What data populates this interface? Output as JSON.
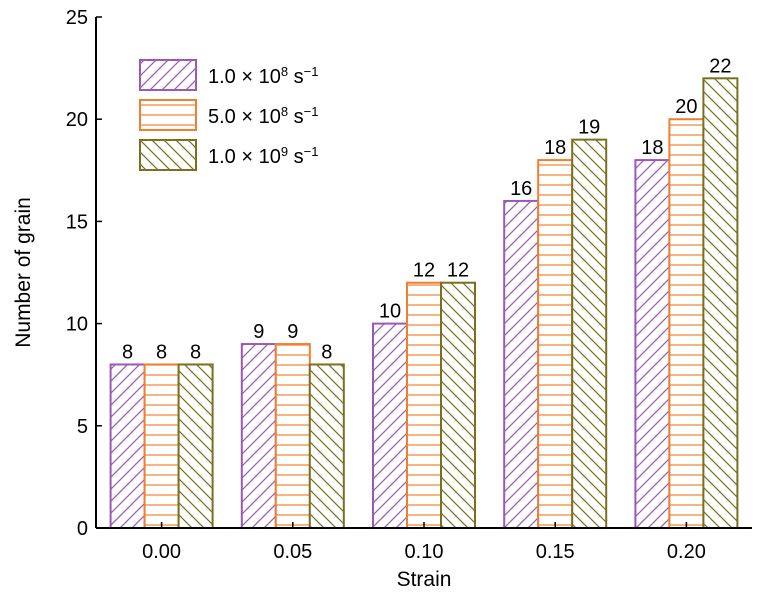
{
  "chart_data": {
    "type": "bar",
    "categories": [
      "0.00",
      "0.05",
      "0.10",
      "0.15",
      "0.20"
    ],
    "series": [
      {
        "name_base": "1.0 × 10",
        "name_exp": "8",
        "name_unit": " s",
        "name_unit_exp": "−1",
        "values": [
          8,
          9,
          10,
          16,
          18
        ],
        "color": "#9b59b6",
        "pattern": "diagonal-up"
      },
      {
        "name_base": "5.0 × 10",
        "name_exp": "8",
        "name_unit": " s",
        "name_unit_exp": "−1",
        "values": [
          8,
          9,
          12,
          18,
          20
        ],
        "color": "#f08030",
        "pattern": "horizontal"
      },
      {
        "name_base": "1.0 × 10",
        "name_exp": "9",
        "name_unit": " s",
        "name_unit_exp": "−1",
        "values": [
          8,
          8,
          12,
          19,
          22
        ],
        "color": "#7a7020",
        "pattern": "diagonal-down"
      }
    ],
    "xlabel": "Strain",
    "ylabel": "Number of grain",
    "ylim": [
      0,
      25
    ],
    "yticks": [
      "0",
      "5",
      "10",
      "15",
      "20",
      "25"
    ],
    "grid": false,
    "legend_position": "top-left",
    "data_labels": true
  }
}
